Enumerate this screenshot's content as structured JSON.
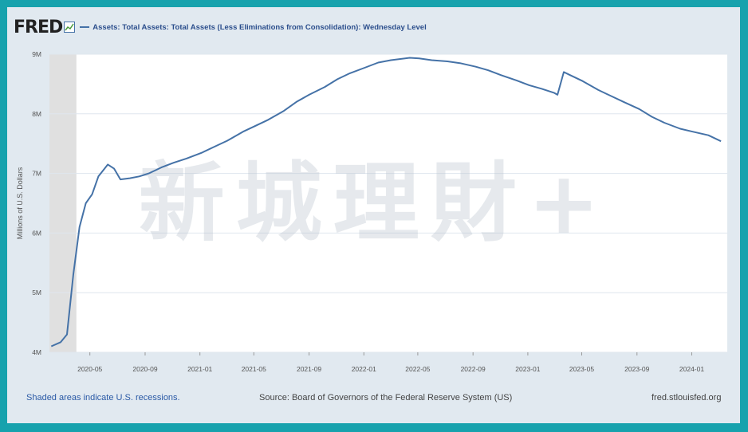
{
  "header": {
    "logo_text": "FRED",
    "legend_label": "Assets: Total Assets: Total Assets (Less Eliminations from Consolidation): Wednesday Level"
  },
  "footer": {
    "recession_note": "Shaded areas indicate U.S. recessions.",
    "source": "Source: Board of Governors of the Federal Reserve System (US)",
    "site": "fred.stlouisfed.org"
  },
  "watermark": {
    "text": "新城理財+"
  },
  "colors": {
    "line": "#4572a7",
    "recession": "#e0e0e0",
    "grid": "#dfe6ee"
  },
  "chart_data": {
    "type": "line",
    "ylabel": "Millions of U.S. Dollars",
    "yticks": [
      "4M",
      "5M",
      "6M",
      "7M",
      "8M",
      "9M"
    ],
    "ylim": [
      4000000,
      9000000
    ],
    "xticks": [
      "2020-05",
      "2020-09",
      "2021-01",
      "2021-05",
      "2021-09",
      "2022-01",
      "2022-05",
      "2022-09",
      "2023-01",
      "2023-05",
      "2023-09",
      "2024-01"
    ],
    "recession": {
      "start": "2020-02",
      "end": "2020-04"
    },
    "series": [
      {
        "name": "Assets: Total Assets: Total Assets (Less Eliminations from Consolidation): Wednesday Level",
        "points": [
          [
            "2020-02-05",
            4100000
          ],
          [
            "2020-02-26",
            4170000
          ],
          [
            "2020-03-11",
            4300000
          ],
          [
            "2020-03-25",
            5300000
          ],
          [
            "2020-04-08",
            6100000
          ],
          [
            "2020-04-22",
            6500000
          ],
          [
            "2020-05-06",
            6650000
          ],
          [
            "2020-05-20",
            6950000
          ],
          [
            "2020-06-10",
            7150000
          ],
          [
            "2020-06-24",
            7080000
          ],
          [
            "2020-07-08",
            6900000
          ],
          [
            "2020-07-29",
            6920000
          ],
          [
            "2020-08-19",
            6950000
          ],
          [
            "2020-09-09",
            7000000
          ],
          [
            "2020-10-07",
            7100000
          ],
          [
            "2020-11-04",
            7180000
          ],
          [
            "2020-12-02",
            7250000
          ],
          [
            "2021-01-06",
            7350000
          ],
          [
            "2021-02-03",
            7450000
          ],
          [
            "2021-03-03",
            7550000
          ],
          [
            "2021-04-07",
            7700000
          ],
          [
            "2021-05-05",
            7800000
          ],
          [
            "2021-06-02",
            7900000
          ],
          [
            "2021-07-07",
            8050000
          ],
          [
            "2021-08-04",
            8200000
          ],
          [
            "2021-09-01",
            8320000
          ],
          [
            "2021-10-06",
            8450000
          ],
          [
            "2021-11-03",
            8580000
          ],
          [
            "2021-12-01",
            8680000
          ],
          [
            "2022-01-05",
            8780000
          ],
          [
            "2022-02-02",
            8860000
          ],
          [
            "2022-03-02",
            8900000
          ],
          [
            "2022-04-13",
            8940000
          ],
          [
            "2022-05-04",
            8930000
          ],
          [
            "2022-06-01",
            8900000
          ],
          [
            "2022-07-06",
            8880000
          ],
          [
            "2022-08-03",
            8850000
          ],
          [
            "2022-09-07",
            8790000
          ],
          [
            "2022-10-05",
            8730000
          ],
          [
            "2022-11-02",
            8650000
          ],
          [
            "2022-12-07",
            8560000
          ],
          [
            "2023-01-04",
            8480000
          ],
          [
            "2023-02-01",
            8420000
          ],
          [
            "2023-03-01",
            8350000
          ],
          [
            "2023-03-08",
            8320000
          ],
          [
            "2023-03-22",
            8700000
          ],
          [
            "2023-04-05",
            8650000
          ],
          [
            "2023-05-03",
            8550000
          ],
          [
            "2023-06-07",
            8400000
          ],
          [
            "2023-07-05",
            8300000
          ],
          [
            "2023-08-02",
            8200000
          ],
          [
            "2023-09-06",
            8080000
          ],
          [
            "2023-10-04",
            7950000
          ],
          [
            "2023-11-01",
            7850000
          ],
          [
            "2023-12-06",
            7750000
          ],
          [
            "2024-01-03",
            7700000
          ],
          [
            "2024-02-07",
            7640000
          ],
          [
            "2024-03-06",
            7540000
          ]
        ]
      }
    ]
  }
}
